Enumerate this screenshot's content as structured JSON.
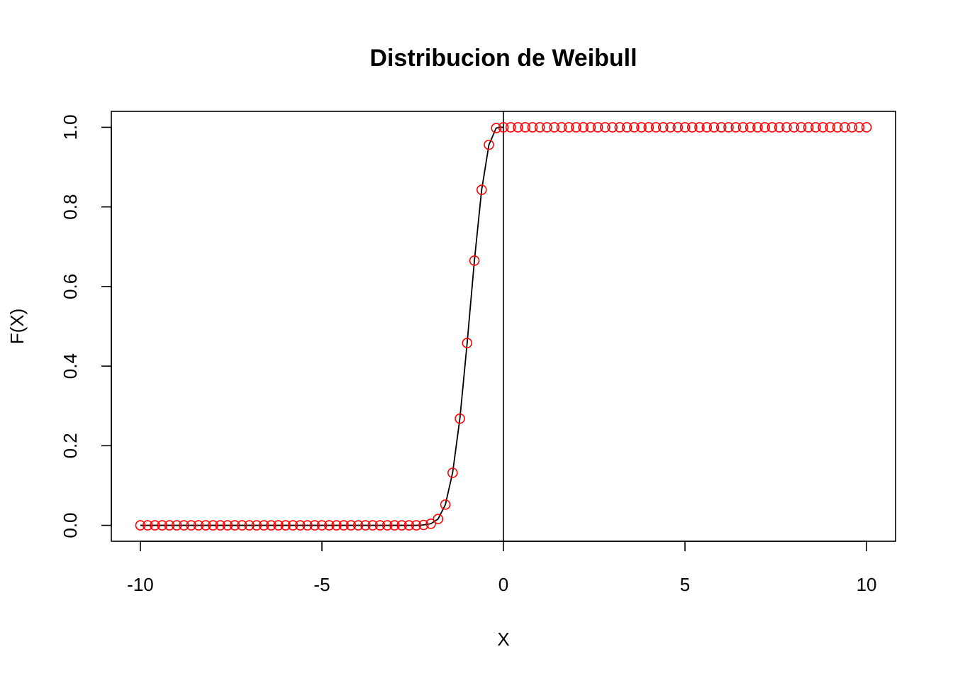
{
  "chart_data": {
    "type": "scatter",
    "title": "Distribucion de Weibull",
    "xlabel": "X",
    "ylabel": "F(X)",
    "xlim": [
      -10.8,
      10.8
    ],
    "ylim": [
      -0.04,
      1.04
    ],
    "x_ticks": [
      -10,
      -5,
      0,
      5,
      10
    ],
    "x_tick_labels": [
      "-10",
      "-5",
      "0",
      "5",
      "10"
    ],
    "y_ticks": [
      0.0,
      0.2,
      0.4,
      0.6,
      0.8,
      1.0
    ],
    "y_tick_labels": [
      "0.0",
      "0.2",
      "0.4",
      "0.6",
      "0.8",
      "1.0"
    ],
    "grid": false,
    "legend": "none",
    "vertical_reference_line_x": 0,
    "points": {
      "color": "#ff0000",
      "x": [
        -10.0,
        -9.8,
        -9.6,
        -9.4,
        -9.2,
        -9.0,
        -8.8,
        -8.6,
        -8.4,
        -8.2,
        -8.0,
        -7.8,
        -7.6,
        -7.4,
        -7.2,
        -7.0,
        -6.8,
        -6.6,
        -6.4,
        -6.2,
        -6.0,
        -5.8,
        -5.6,
        -5.4,
        -5.2,
        -5.0,
        -4.8,
        -4.6,
        -4.4,
        -4.2,
        -4.0,
        -3.8,
        -3.6,
        -3.4,
        -3.2,
        -3.0,
        -2.8,
        -2.6,
        -2.4,
        -2.2,
        -2.0,
        -1.8,
        -1.6,
        -1.4,
        -1.2,
        -1.0,
        -0.8,
        -0.6,
        -0.4,
        -0.2,
        0.0,
        0.2,
        0.4,
        0.6,
        0.8,
        1.0,
        1.2,
        1.4,
        1.6,
        1.8,
        2.0,
        2.2,
        2.4,
        2.6,
        2.8,
        3.0,
        3.2,
        3.4,
        3.6,
        3.8,
        4.0,
        4.2,
        4.4,
        4.6,
        4.8,
        5.0,
        5.2,
        5.4,
        5.6,
        5.8,
        6.0,
        6.2,
        6.4,
        6.6,
        6.8,
        7.0,
        7.2,
        7.4,
        7.6,
        7.8,
        8.0,
        8.2,
        8.4,
        8.6,
        8.8,
        9.0,
        9.2,
        9.4,
        9.6,
        9.8,
        10.0
      ],
      "y": [
        0,
        0,
        0,
        0,
        0,
        0,
        0,
        0,
        0,
        0,
        0,
        0,
        0,
        0,
        0,
        0,
        0,
        0,
        0,
        0,
        0,
        0,
        0,
        0,
        0,
        0,
        0,
        0,
        0,
        0,
        0,
        0,
        0,
        0,
        0,
        0,
        0,
        0,
        0,
        0.001,
        0.004,
        0.016,
        0.052,
        0.132,
        0.268,
        0.458,
        0.665,
        0.843,
        0.956,
        0.998,
        1,
        1,
        1,
        1,
        1,
        1,
        1,
        1,
        1,
        1,
        1,
        1,
        1,
        1,
        1,
        1,
        1,
        1,
        1,
        1,
        1,
        1,
        1,
        1,
        1,
        1,
        1,
        1,
        1,
        1,
        1,
        1,
        1,
        1,
        1,
        1,
        1,
        1,
        1,
        1,
        1,
        1,
        1,
        1,
        1,
        1,
        1,
        1,
        1,
        1,
        1
      ]
    },
    "line": {
      "color": "#000000",
      "x": [
        -10.0,
        -3.0,
        -2.4,
        -2.2,
        -2.0,
        -1.8,
        -1.6,
        -1.4,
        -1.2,
        -1.0,
        -0.8,
        -0.6,
        -0.4,
        -0.2,
        -0.1,
        0.0
      ],
      "y": [
        0,
        0,
        0,
        0.001,
        0.004,
        0.016,
        0.052,
        0.132,
        0.268,
        0.458,
        0.665,
        0.843,
        0.956,
        0.998,
        1.0,
        1.0
      ]
    }
  }
}
